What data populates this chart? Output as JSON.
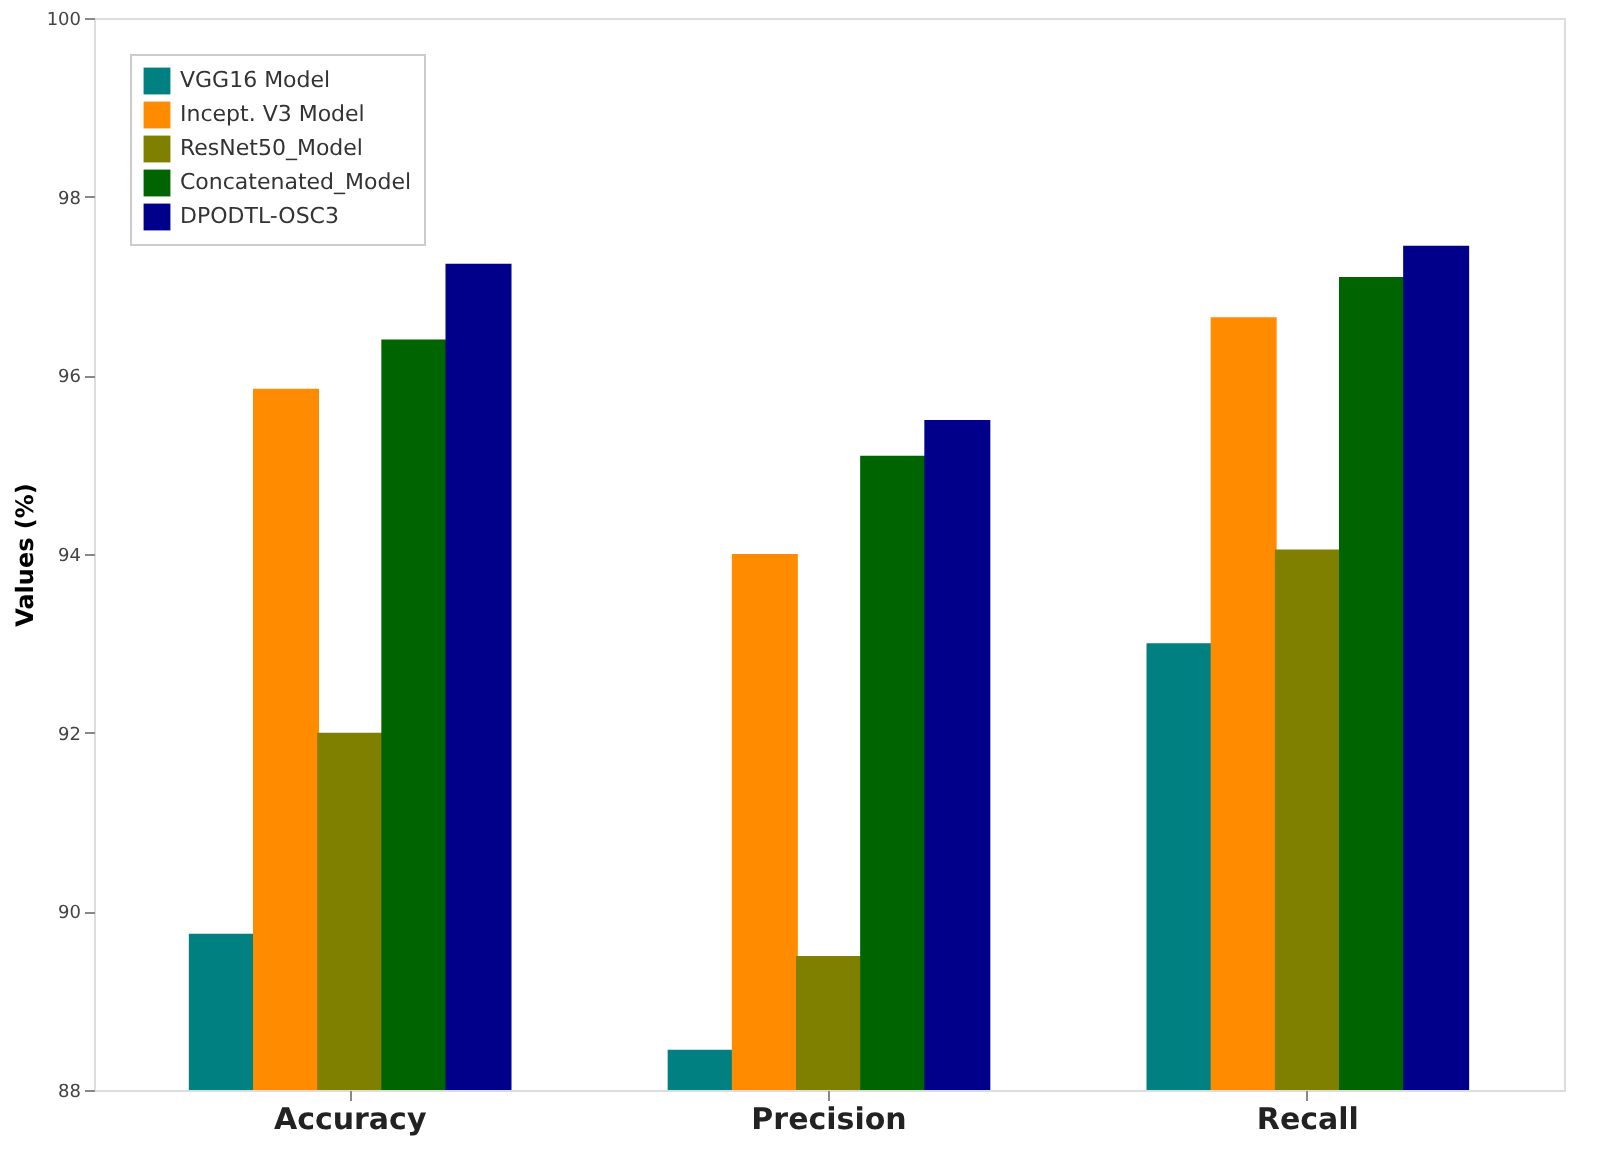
{
  "chart_data": {
    "type": "bar",
    "ylabel": "Values (%)",
    "categories": [
      "Accuracy",
      "Precision",
      "Recall"
    ],
    "series": [
      {
        "name": "VGG16 Model",
        "color": "#008080",
        "values": [
          89.75,
          88.45,
          93.0
        ]
      },
      {
        "name": "Incept. V3 Model",
        "color": "#ff8c00",
        "values": [
          95.85,
          94.0,
          96.65
        ]
      },
      {
        "name": "ResNet50_Model",
        "color": "#808000",
        "values": [
          92.0,
          89.5,
          94.05
        ]
      },
      {
        "name": "Concatenated_Model",
        "color": "#006400",
        "values": [
          96.4,
          95.1,
          97.1
        ]
      },
      {
        "name": "DPODTL-OSC3",
        "color": "#00008b",
        "values": [
          97.25,
          95.5,
          97.45
        ]
      }
    ],
    "ylim": [
      88,
      100
    ],
    "yticks": [
      88,
      90,
      92,
      94,
      96,
      98,
      100
    ],
    "grid": false,
    "legend": "top left"
  }
}
